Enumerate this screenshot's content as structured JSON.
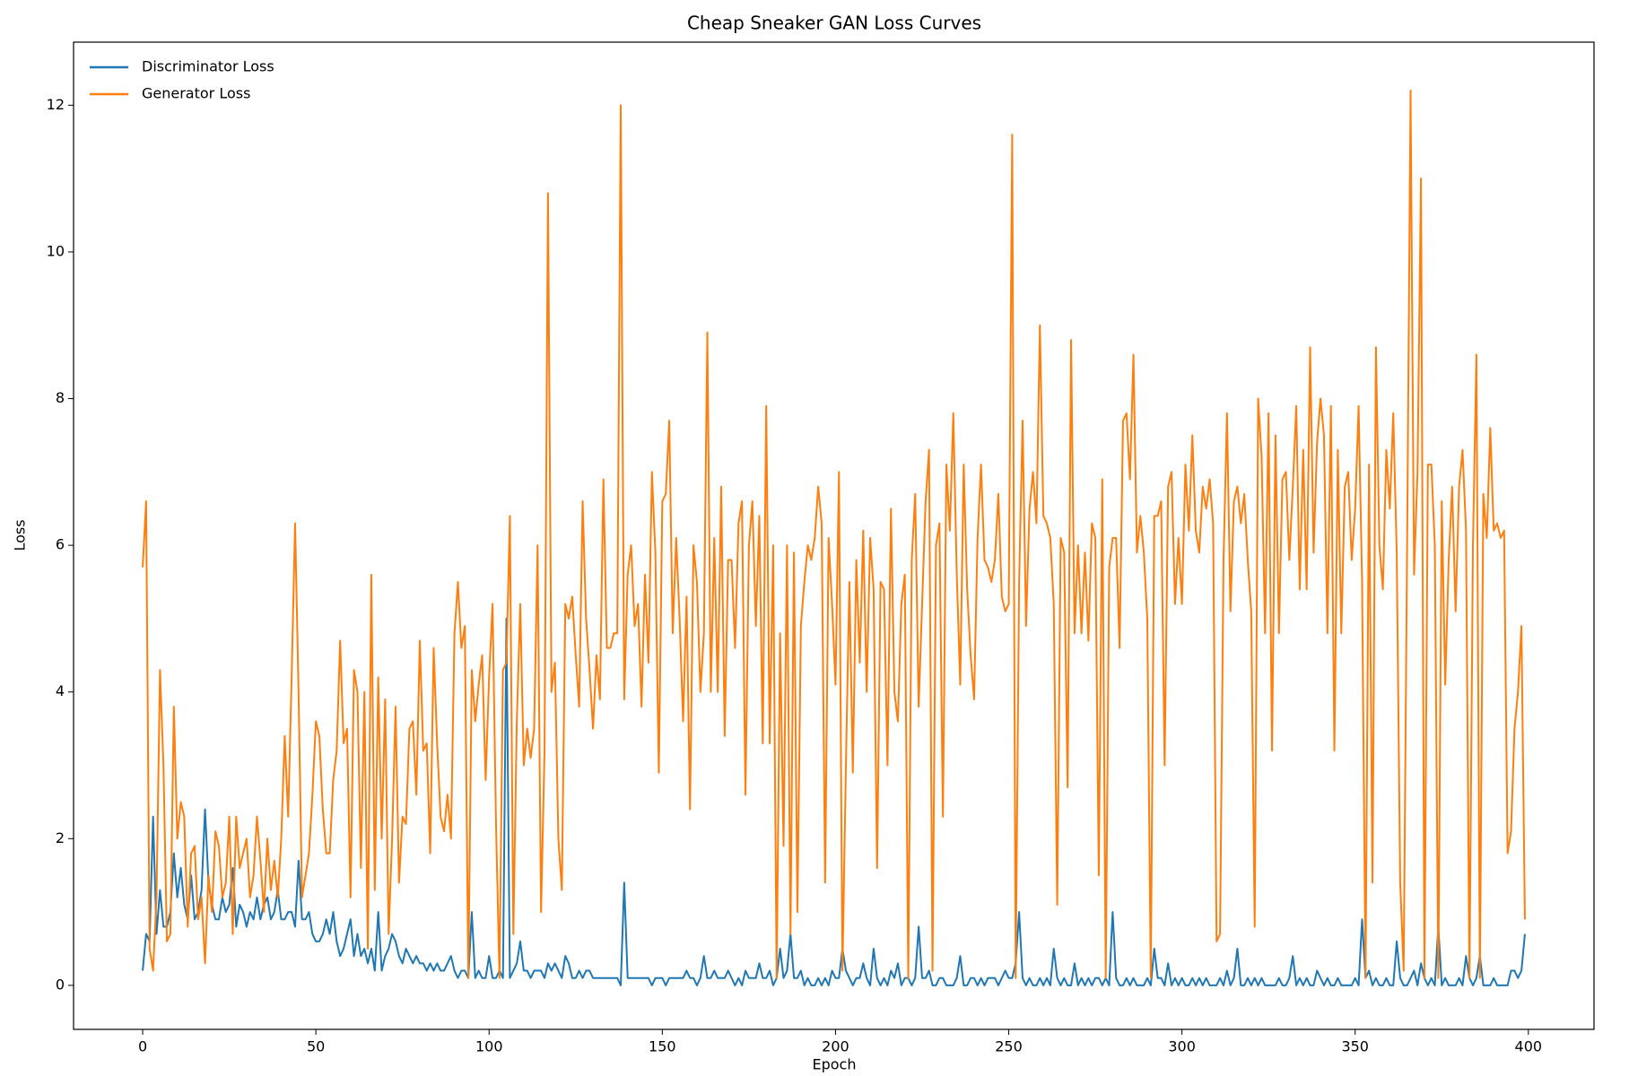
{
  "chart_data": {
    "type": "line",
    "title": "Cheap Sneaker GAN Loss Curves",
    "x_label": "Epoch",
    "y_label": "Loss",
    "x": [
      0,
      1,
      2,
      3,
      4,
      5,
      6,
      7,
      8,
      9,
      10,
      11,
      12,
      13,
      14,
      15,
      16,
      17,
      18,
      19,
      20,
      21,
      22,
      23,
      24,
      25,
      26,
      27,
      28,
      29,
      30,
      31,
      32,
      33,
      34,
      35,
      36,
      37,
      38,
      39,
      40,
      41,
      42,
      43,
      44,
      45,
      46,
      47,
      48,
      49,
      50,
      51,
      52,
      53,
      54,
      55,
      56,
      57,
      58,
      59,
      60,
      61,
      62,
      63,
      64,
      65,
      66,
      67,
      68,
      69,
      70,
      71,
      72,
      73,
      74,
      75,
      76,
      77,
      78,
      79,
      80,
      81,
      82,
      83,
      84,
      85,
      86,
      87,
      88,
      89,
      90,
      91,
      92,
      93,
      94,
      95,
      96,
      97,
      98,
      99,
      100,
      101,
      102,
      103,
      104,
      105,
      106,
      107,
      108,
      109,
      110,
      111,
      112,
      113,
      114,
      115,
      116,
      117,
      118,
      119,
      120,
      121,
      122,
      123,
      124,
      125,
      126,
      127,
      128,
      129,
      130,
      131,
      132,
      133,
      134,
      135,
      136,
      137,
      138,
      139,
      140,
      141,
      142,
      143,
      144,
      145,
      146,
      147,
      148,
      149,
      150,
      151,
      152,
      153,
      154,
      155,
      156,
      157,
      158,
      159,
      160,
      161,
      162,
      163,
      164,
      165,
      166,
      167,
      168,
      169,
      170,
      171,
      172,
      173,
      174,
      175,
      176,
      177,
      178,
      179,
      180,
      181,
      182,
      183,
      184,
      185,
      186,
      187,
      188,
      189,
      190,
      191,
      192,
      193,
      194,
      195,
      196,
      197,
      198,
      199,
      200,
      201,
      202,
      203,
      204,
      205,
      206,
      207,
      208,
      209,
      210,
      211,
      212,
      213,
      214,
      215,
      216,
      217,
      218,
      219,
      220,
      221,
      222,
      223,
      224,
      225,
      226,
      227,
      228,
      229,
      230,
      231,
      232,
      233,
      234,
      235,
      236,
      237,
      238,
      239,
      240,
      241,
      242,
      243,
      244,
      245,
      246,
      247,
      248,
      249,
      250,
      251,
      252,
      253,
      254,
      255,
      256,
      257,
      258,
      259,
      260,
      261,
      262,
      263,
      264,
      265,
      266,
      267,
      268,
      269,
      270,
      271,
      272,
      273,
      274,
      275,
      276,
      277,
      278,
      279,
      280,
      281,
      282,
      283,
      284,
      285,
      286,
      287,
      288,
      289,
      290,
      291,
      292,
      293,
      294,
      295,
      296,
      297,
      298,
      299,
      300,
      301,
      302,
      303,
      304,
      305,
      306,
      307,
      308,
      309,
      310,
      311,
      312,
      313,
      314,
      315,
      316,
      317,
      318,
      319,
      320,
      321,
      322,
      323,
      324,
      325,
      326,
      327,
      328,
      329,
      330,
      331,
      332,
      333,
      334,
      335,
      336,
      337,
      338,
      339,
      340,
      341,
      342,
      343,
      344,
      345,
      346,
      347,
      348,
      349,
      350,
      351,
      352,
      353,
      354,
      355,
      356,
      357,
      358,
      359,
      360,
      361,
      362,
      363,
      364,
      365,
      366,
      367,
      368,
      369,
      370,
      371,
      372,
      373,
      374,
      375,
      376,
      377,
      378,
      379,
      380,
      381,
      382,
      383,
      384,
      385,
      386,
      387,
      388,
      389,
      390,
      391,
      392,
      393,
      394,
      395,
      396,
      397,
      398,
      399
    ],
    "series": [
      {
        "name": "Discriminator Loss",
        "color": "#1f77b4",
        "values": [
          0.2,
          0.7,
          0.6,
          2.3,
          0.7,
          1.3,
          0.8,
          0.8,
          1.0,
          1.8,
          1.2,
          1.6,
          1.1,
          0.9,
          1.5,
          0.9,
          1.0,
          1.3,
          2.4,
          1.4,
          1.1,
          0.9,
          0.9,
          1.2,
          1.0,
          1.1,
          1.6,
          0.8,
          1.1,
          1.0,
          0.8,
          1.0,
          0.9,
          1.2,
          0.9,
          1.1,
          1.2,
          0.9,
          1.0,
          1.3,
          0.9,
          0.9,
          1.0,
          1.0,
          0.8,
          1.7,
          0.9,
          0.9,
          1.0,
          0.7,
          0.6,
          0.6,
          0.7,
          0.9,
          0.7,
          1.0,
          0.6,
          0.4,
          0.5,
          0.7,
          0.9,
          0.4,
          0.7,
          0.4,
          0.5,
          0.3,
          0.5,
          0.2,
          1.0,
          0.2,
          0.4,
          0.5,
          0.7,
          0.6,
          0.4,
          0.3,
          0.5,
          0.4,
          0.3,
          0.4,
          0.3,
          0.3,
          0.2,
          0.3,
          0.2,
          0.3,
          0.2,
          0.2,
          0.3,
          0.4,
          0.2,
          0.1,
          0.2,
          0.2,
          0.1,
          1.0,
          0.1,
          0.2,
          0.1,
          0.1,
          0.4,
          0.1,
          0.1,
          0.2,
          0.1,
          5.0,
          0.1,
          0.2,
          0.3,
          0.6,
          0.2,
          0.2,
          0.1,
          0.2,
          0.2,
          0.2,
          0.1,
          0.3,
          0.2,
          0.3,
          0.2,
          0.1,
          0.4,
          0.3,
          0.1,
          0.1,
          0.2,
          0.1,
          0.2,
          0.2,
          0.1,
          0.1,
          0.1,
          0.1,
          0.1,
          0.1,
          0.1,
          0.1,
          0.0,
          1.4,
          0.1,
          0.1,
          0.1,
          0.1,
          0.1,
          0.1,
          0.1,
          0.0,
          0.1,
          0.1,
          0.1,
          0.0,
          0.1,
          0.1,
          0.1,
          0.1,
          0.1,
          0.2,
          0.1,
          0.1,
          0.0,
          0.1,
          0.4,
          0.1,
          0.1,
          0.2,
          0.1,
          0.1,
          0.1,
          0.2,
          0.1,
          0.0,
          0.1,
          0.0,
          0.2,
          0.1,
          0.1,
          0.1,
          0.3,
          0.1,
          0.1,
          0.2,
          0.0,
          0.1,
          0.5,
          0.1,
          0.2,
          0.7,
          0.1,
          0.1,
          0.2,
          0.0,
          0.1,
          0.0,
          0.0,
          0.1,
          0.0,
          0.1,
          0.0,
          0.2,
          0.1,
          0.1,
          0.5,
          0.2,
          0.1,
          0.0,
          0.1,
          0.1,
          0.3,
          0.1,
          0.0,
          0.5,
          0.1,
          0.0,
          0.1,
          0.0,
          0.2,
          0.1,
          0.3,
          0.0,
          0.1,
          0.1,
          0.0,
          0.1,
          0.8,
          0.1,
          0.1,
          0.2,
          0.0,
          0.0,
          0.1,
          0.1,
          0.0,
          0.0,
          0.0,
          0.1,
          0.4,
          0.0,
          0.0,
          0.1,
          0.1,
          0.0,
          0.1,
          0.0,
          0.1,
          0.1,
          0.1,
          0.0,
          0.1,
          0.2,
          0.1,
          0.1,
          0.3,
          1.0,
          0.1,
          0.0,
          0.1,
          0.0,
          0.0,
          0.1,
          0.0,
          0.1,
          0.0,
          0.5,
          0.1,
          0.0,
          0.1,
          0.0,
          0.0,
          0.3,
          0.0,
          0.1,
          0.0,
          0.1,
          0.0,
          0.1,
          0.1,
          0.0,
          0.1,
          0.0,
          1.0,
          0.1,
          0.0,
          0.0,
          0.1,
          0.0,
          0.1,
          0.0,
          0.0,
          0.0,
          0.1,
          0.0,
          0.5,
          0.1,
          0.1,
          0.0,
          0.3,
          0.0,
          0.1,
          0.0,
          0.1,
          0.0,
          0.0,
          0.1,
          0.0,
          0.1,
          0.0,
          0.1,
          0.0,
          0.0,
          0.0,
          0.1,
          0.0,
          0.2,
          0.0,
          0.1,
          0.5,
          0.0,
          0.0,
          0.1,
          0.0,
          0.1,
          0.0,
          0.1,
          0.0,
          0.0,
          0.0,
          0.0,
          0.1,
          0.0,
          0.0,
          0.1,
          0.4,
          0.0,
          0.1,
          0.0,
          0.1,
          0.0,
          0.0,
          0.2,
          0.1,
          0.0,
          0.1,
          0.0,
          0.0,
          0.1,
          0.0,
          0.0,
          0.0,
          0.0,
          0.1,
          0.0,
          0.9,
          0.1,
          0.2,
          0.0,
          0.1,
          0.0,
          0.0,
          0.1,
          0.0,
          0.0,
          0.6,
          0.1,
          0.0,
          0.0,
          0.1,
          0.2,
          0.0,
          0.3,
          0.1,
          0.0,
          0.1,
          0.0,
          0.8,
          0.0,
          0.1,
          0.0,
          0.0,
          0.0,
          0.1,
          0.0,
          0.4,
          0.1,
          0.0,
          0.1,
          0.4,
          0.0,
          0.0,
          0.0,
          0.1,
          0.0,
          0.0,
          0.0,
          0.0,
          0.2,
          0.2,
          0.1,
          0.2,
          0.7
        ]
      },
      {
        "name": "Generator Loss",
        "color": "#ff7f0e",
        "values": [
          5.7,
          6.6,
          0.5,
          0.2,
          1.2,
          4.3,
          3.0,
          0.6,
          0.7,
          3.8,
          2.0,
          2.5,
          2.3,
          0.8,
          1.8,
          1.9,
          0.9,
          1.2,
          0.3,
          1.5,
          1.0,
          2.1,
          1.9,
          1.2,
          1.4,
          2.3,
          0.7,
          2.3,
          1.6,
          1.8,
          2.0,
          1.2,
          1.5,
          2.3,
          1.7,
          1.0,
          2.0,
          1.3,
          1.7,
          1.2,
          2.0,
          3.4,
          2.3,
          4.2,
          6.3,
          4.0,
          1.2,
          1.5,
          1.8,
          2.6,
          3.6,
          3.4,
          2.4,
          1.8,
          1.8,
          2.8,
          3.2,
          4.7,
          3.3,
          3.5,
          1.2,
          4.3,
          4.0,
          1.6,
          4.0,
          0.5,
          5.6,
          1.3,
          4.2,
          2.0,
          3.9,
          0.7,
          2.0,
          3.8,
          1.4,
          2.3,
          2.2,
          3.5,
          3.6,
          2.6,
          4.7,
          3.2,
          3.3,
          1.8,
          4.6,
          3.3,
          2.3,
          2.1,
          2.6,
          2.0,
          4.8,
          5.5,
          4.6,
          4.9,
          0.1,
          4.3,
          3.6,
          4.1,
          4.5,
          2.8,
          4.2,
          5.2,
          2.2,
          0.1,
          4.3,
          4.4,
          6.4,
          0.7,
          3.6,
          5.2,
          3.0,
          3.5,
          3.1,
          3.5,
          6.0,
          1.0,
          3.2,
          10.8,
          4.0,
          4.4,
          2.0,
          1.3,
          5.2,
          5.0,
          5.3,
          4.5,
          3.8,
          6.6,
          5.0,
          4.3,
          3.5,
          4.5,
          3.9,
          6.9,
          4.6,
          4.6,
          4.8,
          4.8,
          12.0,
          3.9,
          5.6,
          6.0,
          4.9,
          5.2,
          3.8,
          5.6,
          4.4,
          7.0,
          5.9,
          2.9,
          6.6,
          6.7,
          7.7,
          4.8,
          6.1,
          5.0,
          3.6,
          5.3,
          2.4,
          6.0,
          5.5,
          4.0,
          4.8,
          8.9,
          4.0,
          6.1,
          4.0,
          6.8,
          3.4,
          5.8,
          5.8,
          4.6,
          6.3,
          6.6,
          2.6,
          6.0,
          6.6,
          4.9,
          6.4,
          3.3,
          7.9,
          3.3,
          6.0,
          0.1,
          4.8,
          1.9,
          6.0,
          0.7,
          5.9,
          1.0,
          4.9,
          5.5,
          6.0,
          5.8,
          6.1,
          6.8,
          6.3,
          1.4,
          6.1,
          5.2,
          4.1,
          7.0,
          0.2,
          3.0,
          5.5,
          2.9,
          5.8,
          4.4,
          6.2,
          4.0,
          6.1,
          5.4,
          1.6,
          5.5,
          5.4,
          3.0,
          6.5,
          4.0,
          3.6,
          5.2,
          5.6,
          0.1,
          5.8,
          6.7,
          3.8,
          5.2,
          6.6,
          7.3,
          0.2,
          6.0,
          6.3,
          2.3,
          7.1,
          6.2,
          7.8,
          5.6,
          4.1,
          7.1,
          5.4,
          4.5,
          3.9,
          6.1,
          7.1,
          5.8,
          5.7,
          5.5,
          5.8,
          6.7,
          5.3,
          5.1,
          5.2,
          11.6,
          0.1,
          5.5,
          7.7,
          4.9,
          6.5,
          7.0,
          6.3,
          9.0,
          6.4,
          6.3,
          6.1,
          5.2,
          1.1,
          6.1,
          5.9,
          2.7,
          8.8,
          4.8,
          6.0,
          4.8,
          5.9,
          4.7,
          6.3,
          6.1,
          1.5,
          6.9,
          0.1,
          5.7,
          6.1,
          6.1,
          4.6,
          7.7,
          7.8,
          6.9,
          8.6,
          5.9,
          6.4,
          5.9,
          5.0,
          0.1,
          6.4,
          6.4,
          6.6,
          3.0,
          6.8,
          7.0,
          5.2,
          6.1,
          5.2,
          7.1,
          6.2,
          7.5,
          6.2,
          5.9,
          6.8,
          6.5,
          6.9,
          6.3,
          0.6,
          0.7,
          5.8,
          7.8,
          5.1,
          6.6,
          6.8,
          6.3,
          6.7,
          5.8,
          5.1,
          0.8,
          8.0,
          7.2,
          4.8,
          7.8,
          3.2,
          7.5,
          4.8,
          6.9,
          7.0,
          5.8,
          6.8,
          7.9,
          5.4,
          7.3,
          5.4,
          8.7,
          5.9,
          7.4,
          8.0,
          7.5,
          4.8,
          7.9,
          3.2,
          7.3,
          4.8,
          6.8,
          7.0,
          5.8,
          6.5,
          7.9,
          5.5,
          0.1,
          7.1,
          1.4,
          8.7,
          6.0,
          5.4,
          7.3,
          6.5,
          7.8,
          5.9,
          1.4,
          0.2,
          6.0,
          12.2,
          5.6,
          7.0,
          11.0,
          0.1,
          7.1,
          7.1,
          6.0,
          0.1,
          6.6,
          4.1,
          5.8,
          6.8,
          5.1,
          6.8,
          7.3,
          6.2,
          0.1,
          6.0,
          8.6,
          0.1,
          6.7,
          6.1,
          7.6,
          6.2,
          6.3,
          6.1,
          6.2,
          1.8,
          2.1,
          3.5,
          4.0,
          4.9,
          0.9
        ]
      }
    ],
    "xlim": [
      -19.95,
      418.95
    ],
    "xticks": [
      0,
      50,
      100,
      150,
      200,
      250,
      300,
      350,
      400
    ],
    "ylim": [
      -0.6,
      12.86
    ],
    "yticks": [
      0,
      2,
      4,
      6,
      8,
      10,
      12
    ],
    "grid": false,
    "legend": "upper left"
  }
}
